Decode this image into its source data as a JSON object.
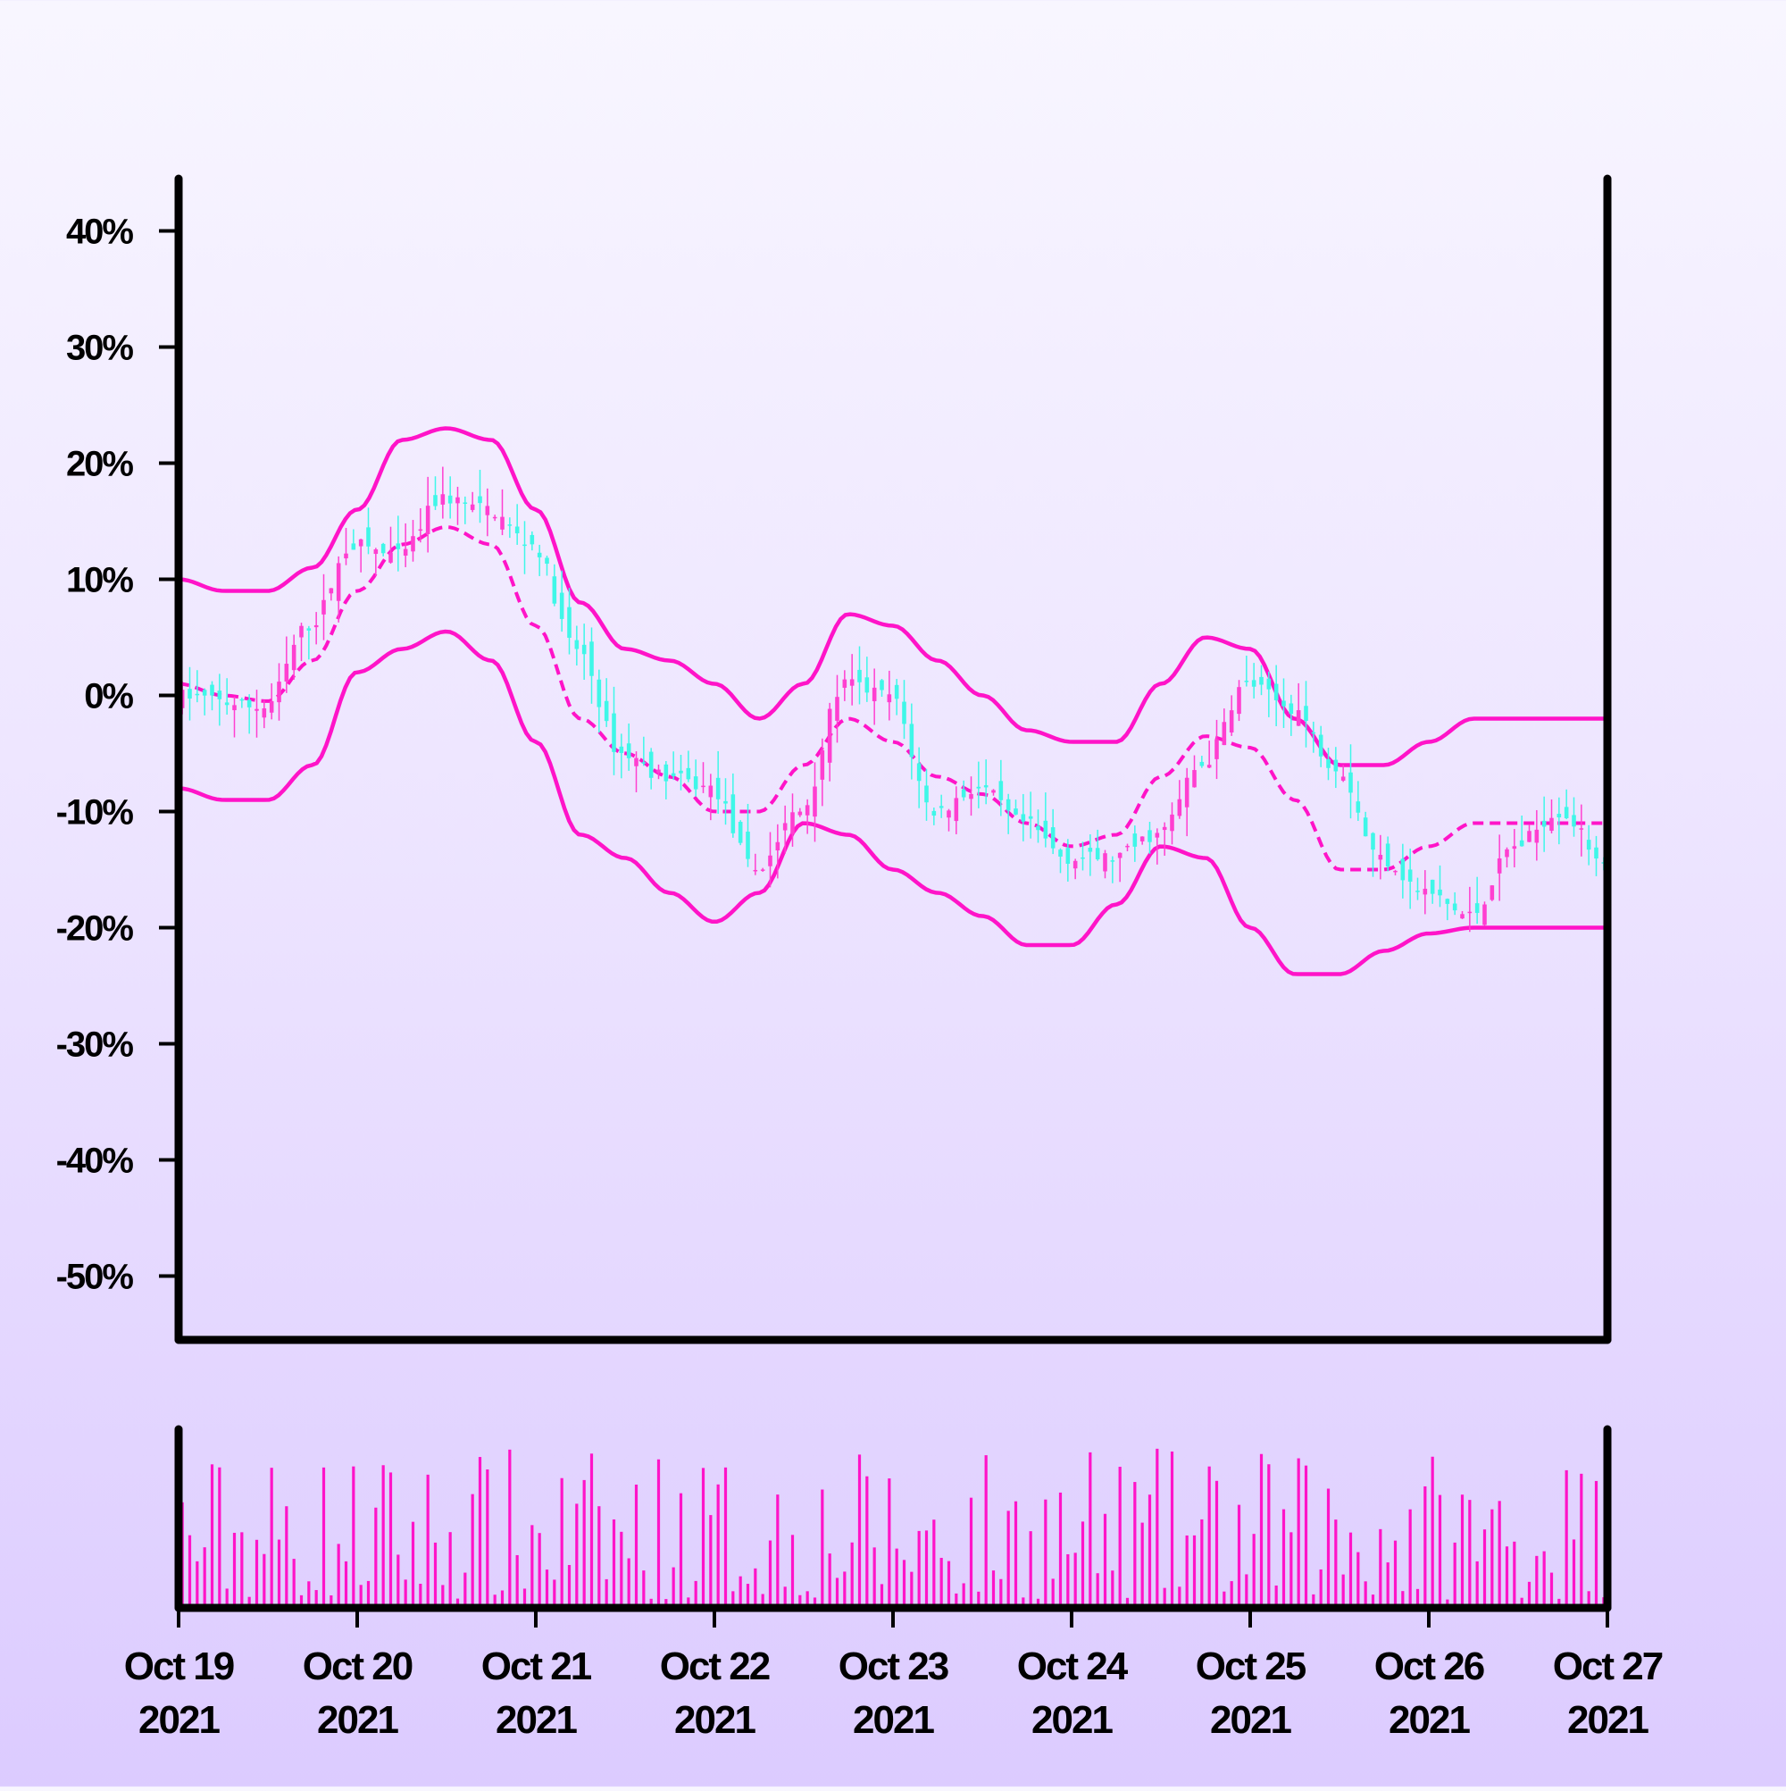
{
  "chart_data": {
    "type": "candlestick",
    "x_ticks": [
      {
        "date": "2021-10-19",
        "line1": "Oct 19",
        "line2": "2021"
      },
      {
        "date": "2021-10-20",
        "line1": "Oct 20",
        "line2": "2021"
      },
      {
        "date": "2021-10-21",
        "line1": "Oct 21",
        "line2": "2021"
      },
      {
        "date": "2021-10-22",
        "line1": "Oct 22",
        "line2": "2021"
      },
      {
        "date": "2021-10-23",
        "line1": "Oct 23",
        "line2": "2021"
      },
      {
        "date": "2021-10-24",
        "line1": "Oct 24",
        "line2": "2021"
      },
      {
        "date": "2021-10-25",
        "line1": "Oct 25",
        "line2": "2021"
      },
      {
        "date": "2021-10-26",
        "line1": "Oct 26",
        "line2": "2021"
      },
      {
        "date": "2021-10-27",
        "line1": "Oct 27",
        "line2": "2021"
      }
    ],
    "y_ticks": [
      40,
      30,
      20,
      10,
      0,
      -10,
      -20,
      -30,
      -40,
      -50
    ],
    "y_tick_labels": [
      "40%",
      "30%",
      "20%",
      "10%",
      "0%",
      "-10%",
      "-20%",
      "-30%",
      "-40%",
      "-50%"
    ],
    "ylim": [
      -55.5,
      44.5
    ],
    "xlim": [
      "2021-10-19",
      "2021-10-27"
    ],
    "y_unit": "%",
    "candle_interval_hours": 1,
    "colors": {
      "up": "#ff3fd0",
      "down": "#3ff7e8",
      "bands": "#ff14c8",
      "volume": "#ff14c8",
      "axis": "#000000"
    },
    "close_series": {
      "description": "hourly close values (%), keyed by date",
      "points": [
        [
          "2021-10-19",
          0
        ],
        [
          "2021-10-19T12:00",
          -1
        ],
        [
          "2021-10-19T18:00",
          6
        ],
        [
          "2021-10-20",
          13
        ],
        [
          "2021-10-20T06:00",
          12
        ],
        [
          "2021-10-20T12:00",
          17
        ],
        [
          "2021-10-20T18:00",
          16
        ],
        [
          "2021-10-21",
          13
        ],
        [
          "2021-10-21T06:00",
          4
        ],
        [
          "2021-10-21T12:00",
          -5
        ],
        [
          "2021-10-21T18:00",
          -7
        ],
        [
          "2021-10-22",
          -8
        ],
        [
          "2021-10-22T06:00",
          -15
        ],
        [
          "2021-10-22T12:00",
          -10
        ],
        [
          "2021-10-22T18:00",
          1
        ],
        [
          "2021-10-23",
          0
        ],
        [
          "2021-10-23T06:00",
          -10
        ],
        [
          "2021-10-23T12:00",
          -8
        ],
        [
          "2021-10-23T18:00",
          -11
        ],
        [
          "2021-10-24",
          -14
        ],
        [
          "2021-10-24T06:00",
          -14
        ],
        [
          "2021-10-24T12:00",
          -12
        ],
        [
          "2021-10-24T18:00",
          -6
        ],
        [
          "2021-10-25",
          1
        ],
        [
          "2021-10-25T06:00",
          -1
        ],
        [
          "2021-10-25T12:00",
          -6
        ],
        [
          "2021-10-25T18:00",
          -14
        ],
        [
          "2021-10-26",
          -17
        ],
        [
          "2021-10-26T06:00",
          -19
        ],
        [
          "2021-10-26T12:00",
          -13
        ],
        [
          "2021-10-26T18:00",
          -10
        ],
        [
          "2021-10-27",
          -14
        ]
      ]
    },
    "bollinger": {
      "upper": [
        [
          "2021-10-19",
          10
        ],
        [
          "2021-10-19T06:00",
          9
        ],
        [
          "2021-10-19T12:00",
          9
        ],
        [
          "2021-10-19T18:00",
          11
        ],
        [
          "2021-10-20",
          16
        ],
        [
          "2021-10-20T06:00",
          22
        ],
        [
          "2021-10-20T12:00",
          23
        ],
        [
          "2021-10-20T18:00",
          22
        ],
        [
          "2021-10-21",
          16
        ],
        [
          "2021-10-21T06:00",
          8
        ],
        [
          "2021-10-21T12:00",
          4
        ],
        [
          "2021-10-21T18:00",
          3
        ],
        [
          "2021-10-22",
          1
        ],
        [
          "2021-10-22T06:00",
          -2
        ],
        [
          "2021-10-22T12:00",
          1
        ],
        [
          "2021-10-22T18:00",
          7
        ],
        [
          "2021-10-23",
          6
        ],
        [
          "2021-10-23T06:00",
          3
        ],
        [
          "2021-10-23T12:00",
          0
        ],
        [
          "2021-10-23T18:00",
          -3
        ],
        [
          "2021-10-24",
          -4
        ],
        [
          "2021-10-24T06:00",
          -4
        ],
        [
          "2021-10-24T12:00",
          1
        ],
        [
          "2021-10-24T18:00",
          5
        ],
        [
          "2021-10-25",
          4
        ],
        [
          "2021-10-25T06:00",
          -2
        ],
        [
          "2021-10-25T12:00",
          -6
        ],
        [
          "2021-10-25T18:00",
          -6
        ],
        [
          "2021-10-26",
          -4
        ],
        [
          "2021-10-26T06:00",
          -2
        ]
      ],
      "middle": [
        [
          "2021-10-19",
          1
        ],
        [
          "2021-10-19T06:00",
          0
        ],
        [
          "2021-10-19T12:00",
          -0.5
        ],
        [
          "2021-10-19T18:00",
          3
        ],
        [
          "2021-10-20",
          9
        ],
        [
          "2021-10-20T06:00",
          13
        ],
        [
          "2021-10-20T12:00",
          14.5
        ],
        [
          "2021-10-20T18:00",
          13
        ],
        [
          "2021-10-21",
          6
        ],
        [
          "2021-10-21T06:00",
          -2
        ],
        [
          "2021-10-21T12:00",
          -5
        ],
        [
          "2021-10-21T18:00",
          -7
        ],
        [
          "2021-10-22",
          -10
        ],
        [
          "2021-10-22T06:00",
          -10
        ],
        [
          "2021-10-22T12:00",
          -6
        ],
        [
          "2021-10-22T18:00",
          -2
        ],
        [
          "2021-10-23",
          -4
        ],
        [
          "2021-10-23T06:00",
          -7
        ],
        [
          "2021-10-23T12:00",
          -8.5
        ],
        [
          "2021-10-23T18:00",
          -11
        ],
        [
          "2021-10-24",
          -13
        ],
        [
          "2021-10-24T06:00",
          -12
        ],
        [
          "2021-10-24T12:00",
          -7
        ],
        [
          "2021-10-24T18:00",
          -3.5
        ],
        [
          "2021-10-25",
          -4.5
        ],
        [
          "2021-10-25T06:00",
          -9
        ],
        [
          "2021-10-25T12:00",
          -15
        ],
        [
          "2021-10-25T18:00",
          -15
        ],
        [
          "2021-10-26",
          -13
        ],
        [
          "2021-10-26T06:00",
          -11
        ]
      ],
      "lower": [
        [
          "2021-10-19",
          -8
        ],
        [
          "2021-10-19T06:00",
          -9
        ],
        [
          "2021-10-19T12:00",
          -9
        ],
        [
          "2021-10-19T18:00",
          -6
        ],
        [
          "2021-10-20",
          2
        ],
        [
          "2021-10-20T06:00",
          4
        ],
        [
          "2021-10-20T12:00",
          5.5
        ],
        [
          "2021-10-20T18:00",
          3
        ],
        [
          "2021-10-21",
          -4
        ],
        [
          "2021-10-21T06:00",
          -12
        ],
        [
          "2021-10-21T12:00",
          -14
        ],
        [
          "2021-10-21T18:00",
          -17
        ],
        [
          "2021-10-22",
          -19.5
        ],
        [
          "2021-10-22T06:00",
          -17
        ],
        [
          "2021-10-22T12:00",
          -11
        ],
        [
          "2021-10-22T18:00",
          -12
        ],
        [
          "2021-10-23",
          -15
        ],
        [
          "2021-10-23T06:00",
          -17
        ],
        [
          "2021-10-23T12:00",
          -19
        ],
        [
          "2021-10-23T18:00",
          -21.5
        ],
        [
          "2021-10-24",
          -21.5
        ],
        [
          "2021-10-24T06:00",
          -18
        ],
        [
          "2021-10-24T12:00",
          -13
        ],
        [
          "2021-10-24T18:00",
          -14
        ],
        [
          "2021-10-25",
          -20
        ],
        [
          "2021-10-25T06:00",
          -24
        ],
        [
          "2021-10-25T12:00",
          -24
        ],
        [
          "2021-10-25T18:00",
          -22
        ],
        [
          "2021-10-26",
          -20.5
        ],
        [
          "2021-10-26T06:00",
          -20
        ]
      ]
    },
    "volume": {
      "ylim": [
        0,
        1
      ]
    }
  }
}
